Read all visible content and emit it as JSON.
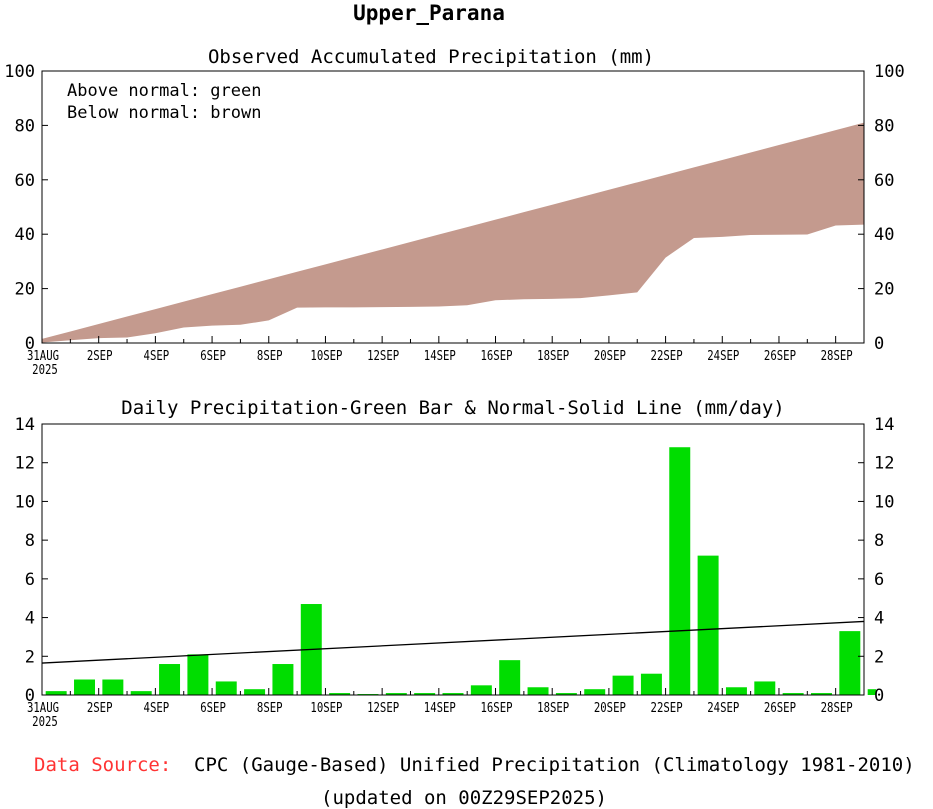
{
  "page": {
    "title": "Upper_Parana",
    "footer": {
      "source_label": "Data Source:",
      "source_text": "CPC (Gauge-Based) Unified Precipitation (Climatology 1981-2010)",
      "updated": "(updated on 00Z29SEP2025)"
    }
  },
  "colors": {
    "below_normal": "#c49a8e",
    "above_normal": "#00cc00",
    "bar": "#00dd00",
    "source_label": "#ff3333"
  },
  "chart_data": [
    {
      "type": "area",
      "title": "Observed Accumulated Precipitation (mm)",
      "legend_text": [
        "Above normal: green",
        "Below normal: brown"
      ],
      "ylim": [
        0,
        100
      ],
      "yticks": [
        0,
        20,
        40,
        60,
        80,
        100
      ],
      "xlim": [
        0,
        29
      ],
      "xticks": [
        {
          "day": 0,
          "label": "31AUG",
          "sublabel": "2025"
        },
        {
          "day": 2,
          "label": "2SEP"
        },
        {
          "day": 4,
          "label": "4SEP"
        },
        {
          "day": 6,
          "label": "6SEP"
        },
        {
          "day": 8,
          "label": "8SEP"
        },
        {
          "day": 10,
          "label": "10SEP"
        },
        {
          "day": 12,
          "label": "12SEP"
        },
        {
          "day": 14,
          "label": "14SEP"
        },
        {
          "day": 16,
          "label": "16SEP"
        },
        {
          "day": 18,
          "label": "18SEP"
        },
        {
          "day": 20,
          "label": "20SEP"
        },
        {
          "day": 22,
          "label": "22SEP"
        },
        {
          "day": 24,
          "label": "24SEP"
        },
        {
          "day": 26,
          "label": "26SEP"
        },
        {
          "day": 28,
          "label": "28SEP"
        }
      ],
      "series": [
        {
          "name": "Normal",
          "x": [
            0,
            29
          ],
          "values": [
            1.5,
            81
          ]
        },
        {
          "name": "Observed",
          "x": [
            0,
            1,
            2,
            3,
            4,
            5,
            6,
            7,
            8,
            9,
            10,
            11,
            12,
            13,
            14,
            15,
            16,
            17,
            18,
            19,
            20,
            21,
            22,
            23,
            24,
            25,
            26,
            27,
            28,
            29
          ],
          "values": [
            0.2,
            1.0,
            1.8,
            2.0,
            3.6,
            5.7,
            6.4,
            6.7,
            8.3,
            13.0,
            13.1,
            13.1,
            13.2,
            13.3,
            13.4,
            13.9,
            15.7,
            16.1,
            16.2,
            16.5,
            17.5,
            18.6,
            31.4,
            38.6,
            39.0,
            39.7,
            39.8,
            39.9,
            43.2,
            43.5
          ]
        }
      ],
      "grid": false
    },
    {
      "type": "bar",
      "title": "Daily Precipitation-Green Bar & Normal-Solid Line (mm/day)",
      "ylim": [
        0,
        14
      ],
      "yticks": [
        0,
        2,
        4,
        6,
        8,
        10,
        12,
        14
      ],
      "xlim": [
        0,
        29
      ],
      "x": [
        0,
        1,
        2,
        3,
        4,
        5,
        6,
        7,
        8,
        9,
        10,
        11,
        12,
        13,
        14,
        15,
        16,
        17,
        18,
        19,
        20,
        21,
        22,
        23,
        24,
        25,
        26,
        27,
        28,
        29
      ],
      "values": [
        0.2,
        0.8,
        0.8,
        0.2,
        1.6,
        2.1,
        0.7,
        0.3,
        1.6,
        4.7,
        0.1,
        0.05,
        0.1,
        0.1,
        0.1,
        0.5,
        1.8,
        0.4,
        0.1,
        0.3,
        1.0,
        1.1,
        12.8,
        7.2,
        0.4,
        0.7,
        0.1,
        0.1,
        3.3,
        0.3
      ],
      "normal_line": {
        "x": [
          0,
          29
        ],
        "values": [
          1.65,
          3.8
        ]
      },
      "grid": false
    }
  ]
}
